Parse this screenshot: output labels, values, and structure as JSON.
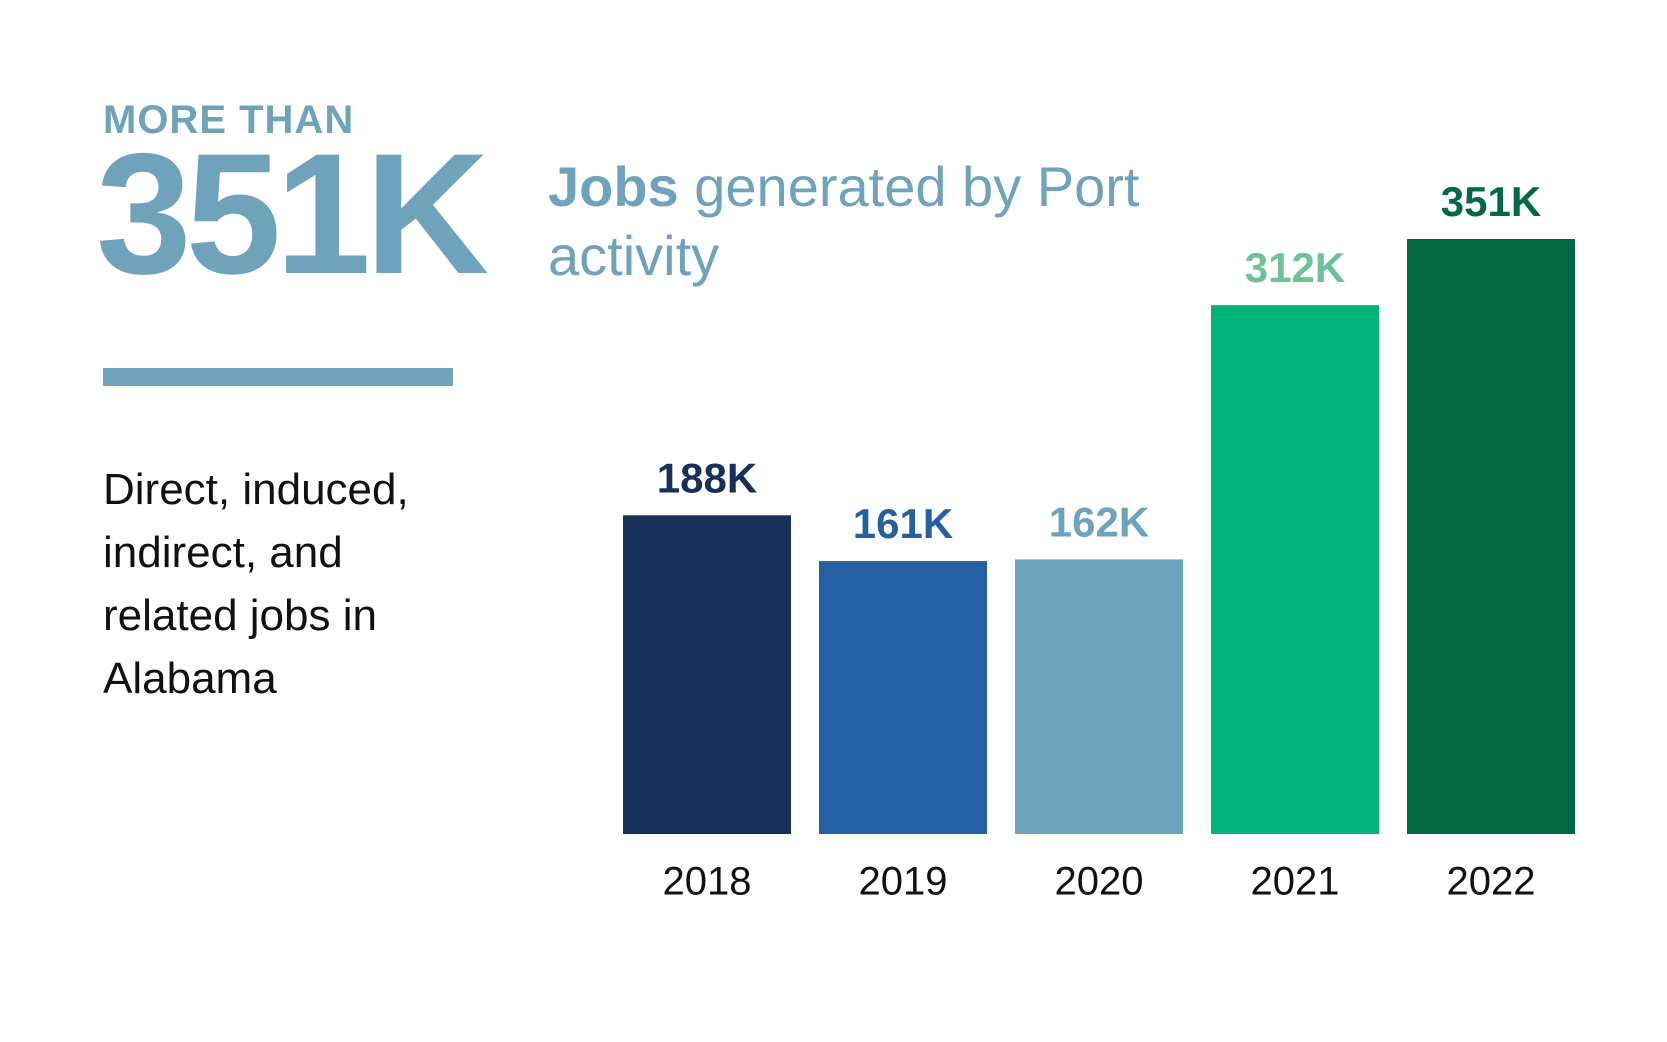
{
  "chart_data": {
    "type": "bar",
    "kicker": "MORE THAN",
    "headline": "351K",
    "description": "Direct, induced, indirect, and related jobs in Alabama",
    "title_bold": "Jobs",
    "title": "generated by Port activity",
    "categories": [
      "2018",
      "2019",
      "2020",
      "2021",
      "2022"
    ],
    "values": [
      188000,
      161000,
      162000,
      312000,
      351000
    ],
    "value_labels": [
      "188K",
      "161K",
      "162K",
      "312K",
      "351K"
    ],
    "colors": [
      "#17305a",
      "#2560a5",
      "#6ea4bb",
      "#00b378",
      "#036945"
    ],
    "label_colors": [
      "#17305a",
      "#2560a5",
      "#6ea4bb",
      "#6cc39a",
      "#036945"
    ]
  }
}
